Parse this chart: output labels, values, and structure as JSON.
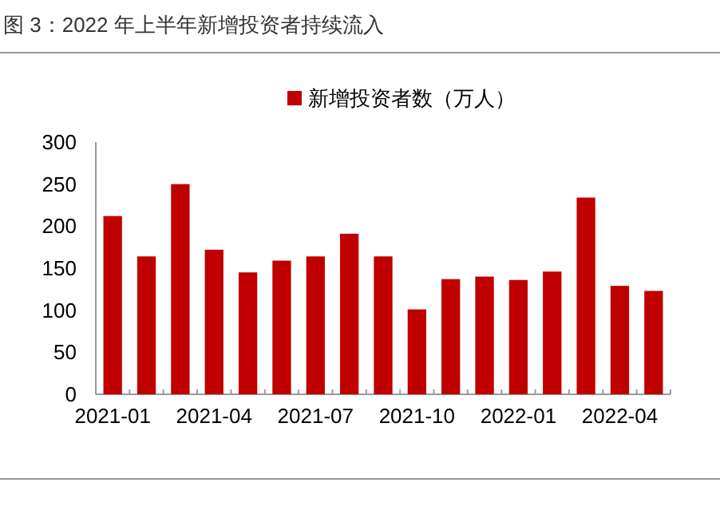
{
  "chart_data": {
    "type": "bar",
    "title": "图 3：2022 年上半年新增投资者持续流入",
    "categories": [
      "2021-01",
      null,
      null,
      "2021-04",
      null,
      null,
      "2021-07",
      null,
      null,
      "2021-10",
      null,
      null,
      "2022-01",
      null,
      null,
      "2022-04",
      null
    ],
    "series": [
      {
        "name": "新增投资者数（万人）",
        "color": "#c00000",
        "values": [
          212,
          164,
          250,
          172,
          145,
          159,
          164,
          191,
          164,
          101,
          137,
          140,
          136,
          146,
          234,
          129,
          123
        ]
      }
    ],
    "ylim": [
      0,
      300
    ],
    "yticks": [
      0,
      50,
      100,
      150,
      200,
      250,
      300
    ],
    "grid": false,
    "legend": "top"
  }
}
